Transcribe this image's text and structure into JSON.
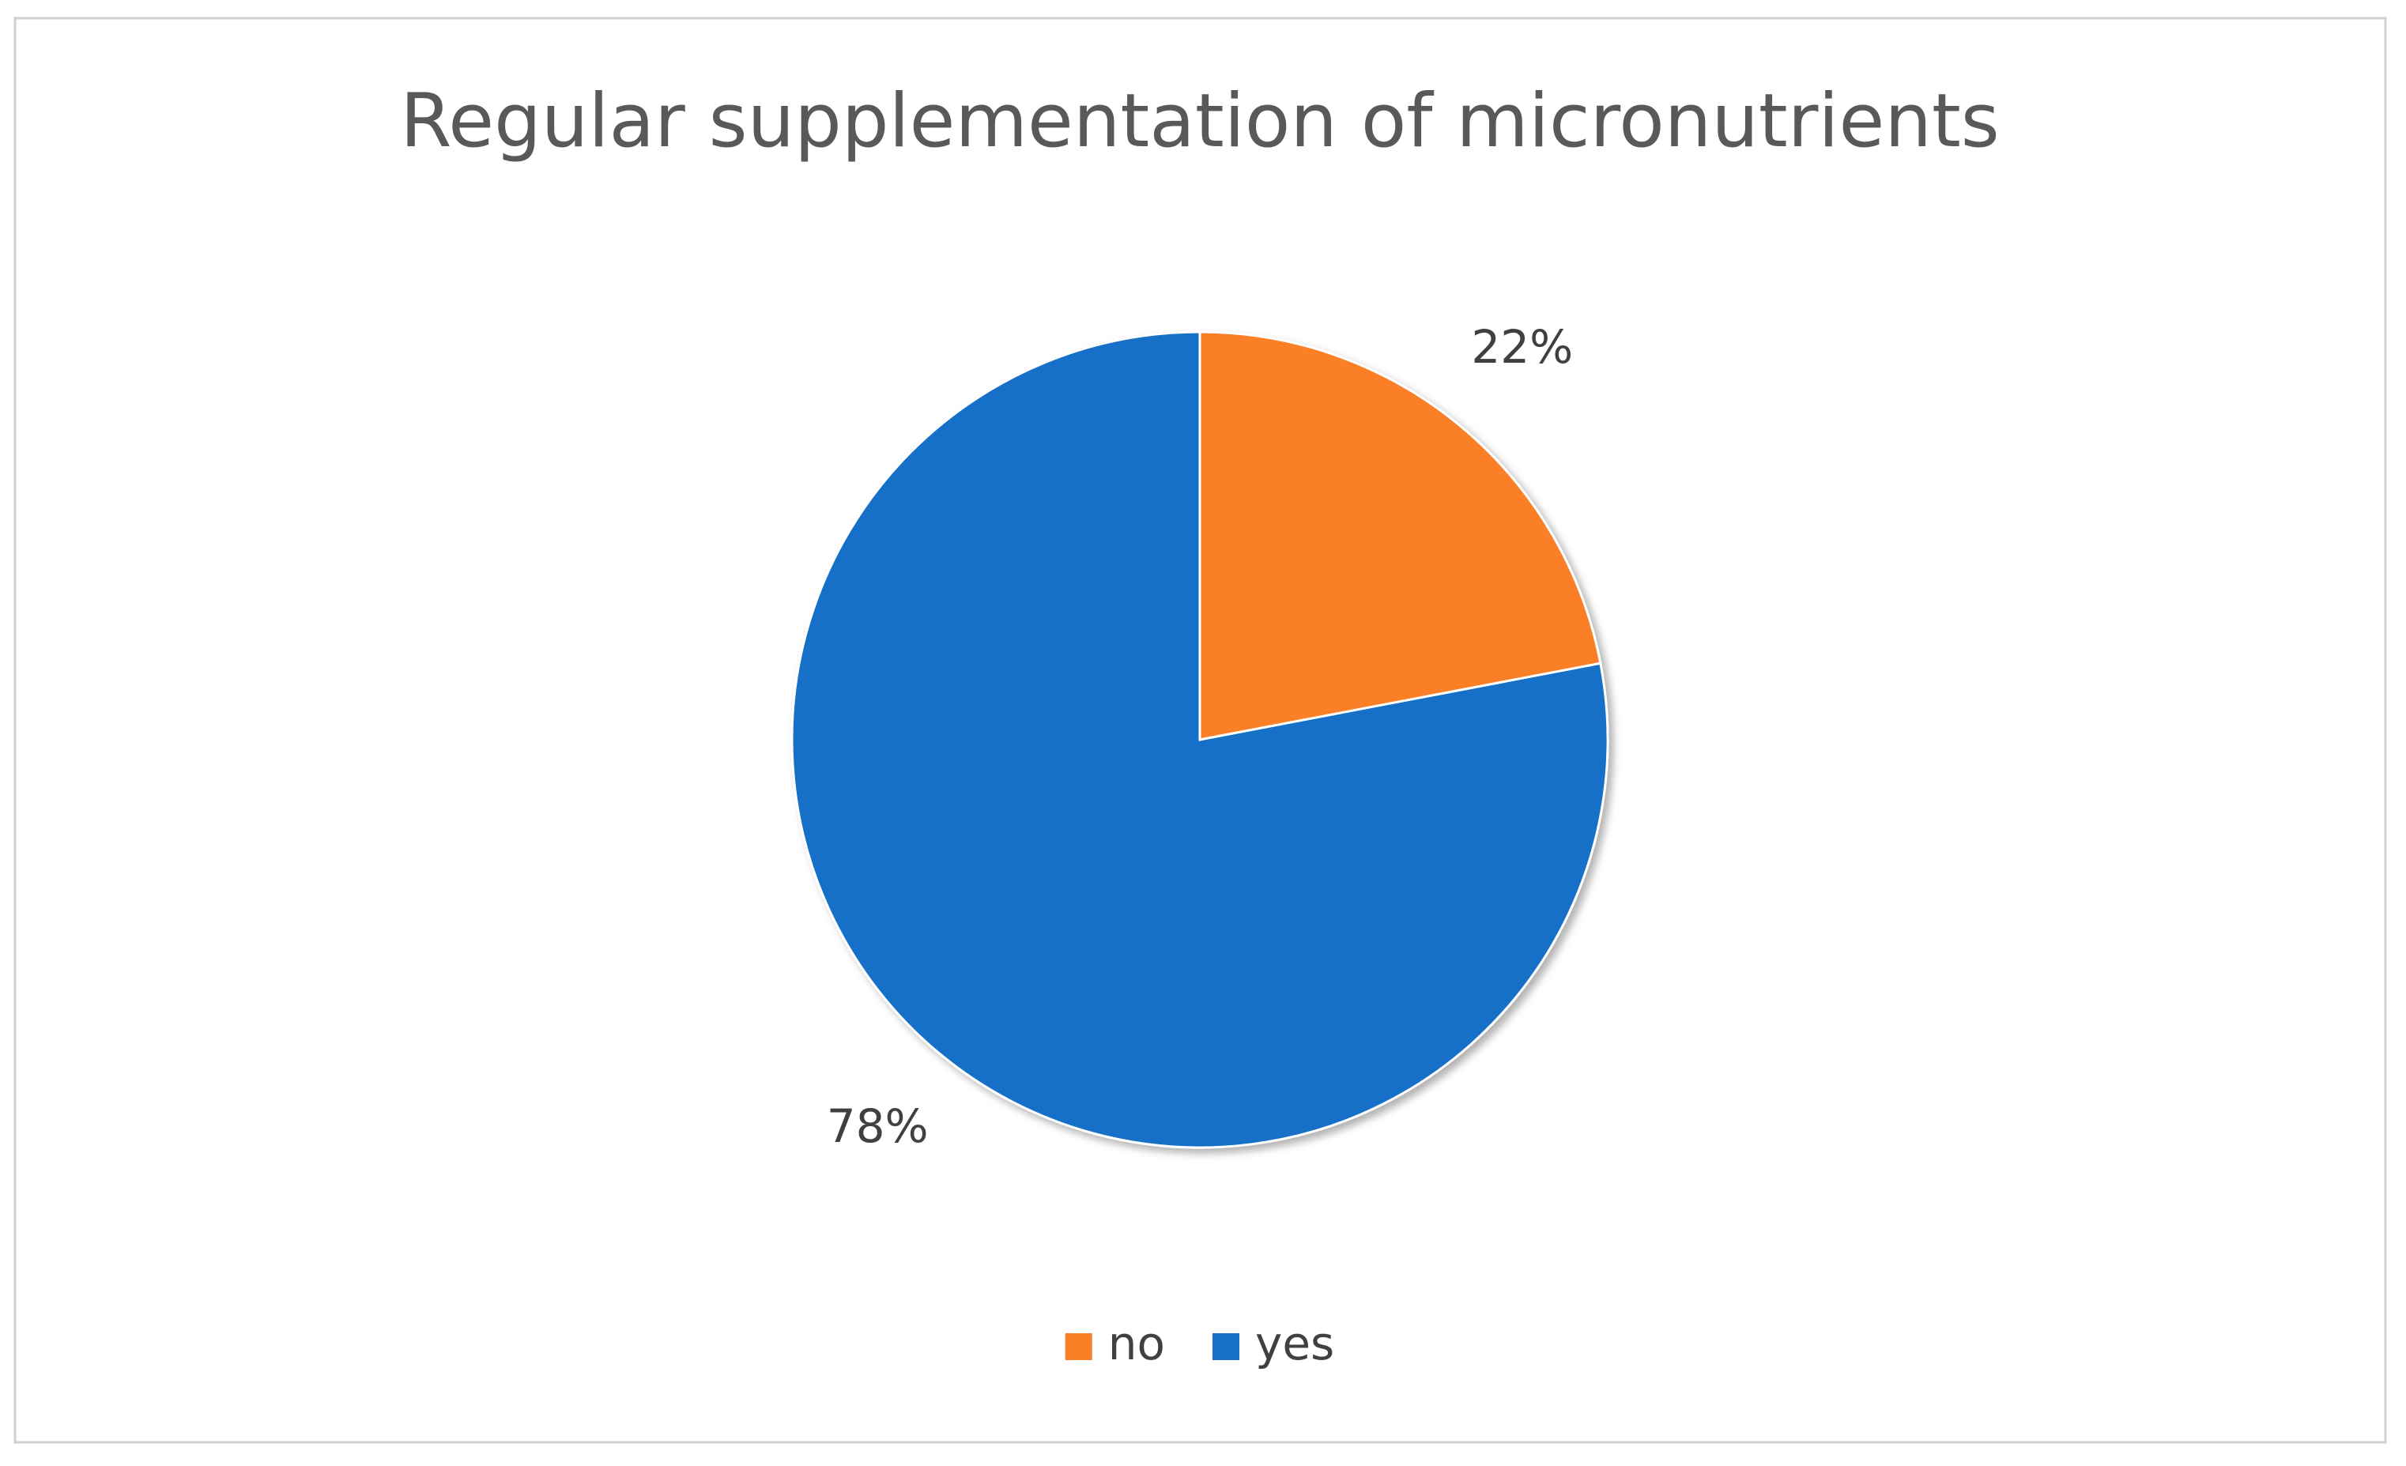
{
  "chart_data": {
    "type": "pie",
    "title": "Regular supplementation of micronutrients",
    "categories": [
      "no",
      "yes"
    ],
    "values": [
      22,
      78
    ],
    "value_labels": [
      "22%",
      "78%"
    ],
    "colors": [
      "#fa7f25",
      "#1770c8"
    ],
    "legend": "bottom"
  }
}
